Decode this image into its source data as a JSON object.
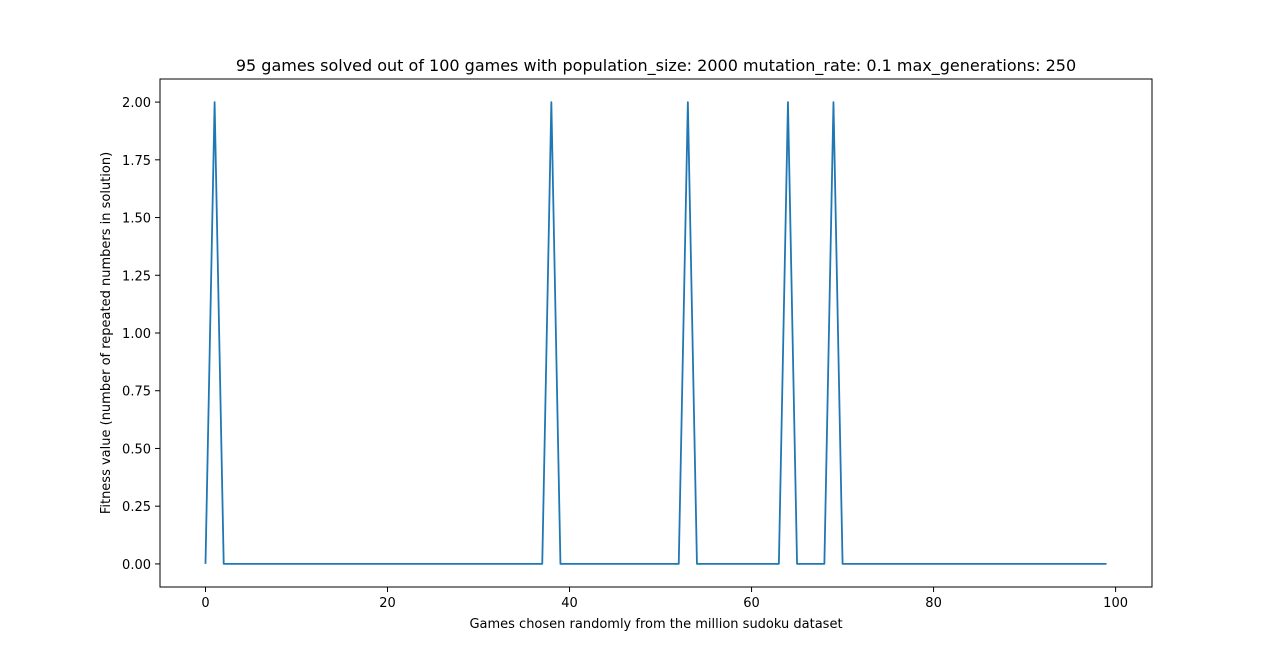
{
  "chart_data": {
    "type": "line",
    "title": "95 games solved out of 100 games with population_size: 2000 mutation_rate: 0.1 max_generations: 250",
    "xlabel": "Games chosen randomly from the million sudoku dataset",
    "ylabel": "Fitness value (number of repeated numbers in solution)",
    "xlim": [
      -5,
      104
    ],
    "ylim": [
      -0.1,
      2.1
    ],
    "xticks": [
      0,
      20,
      40,
      60,
      80,
      100
    ],
    "yticks": [
      0.0,
      0.25,
      0.5,
      0.75,
      1.0,
      1.25,
      1.5,
      1.75,
      2.0
    ],
    "xtick_labels": [
      "0",
      "20",
      "40",
      "60",
      "80",
      "100"
    ],
    "ytick_labels": [
      "0.00",
      "0.25",
      "0.50",
      "0.75",
      "1.00",
      "1.25",
      "1.50",
      "1.75",
      "2.00"
    ],
    "grid": false,
    "series": [
      {
        "color": "#1f77b4",
        "x": [
          0,
          1,
          2,
          3,
          4,
          5,
          6,
          7,
          8,
          9,
          10,
          11,
          12,
          13,
          14,
          15,
          16,
          17,
          18,
          19,
          20,
          21,
          22,
          23,
          24,
          25,
          26,
          27,
          28,
          29,
          30,
          31,
          32,
          33,
          34,
          35,
          36,
          37,
          38,
          39,
          40,
          41,
          42,
          43,
          44,
          45,
          46,
          47,
          48,
          49,
          50,
          51,
          52,
          53,
          54,
          55,
          56,
          57,
          58,
          59,
          60,
          61,
          62,
          63,
          64,
          65,
          66,
          67,
          68,
          69,
          70,
          71,
          72,
          73,
          74,
          75,
          76,
          77,
          78,
          79,
          80,
          81,
          82,
          83,
          84,
          85,
          86,
          87,
          88,
          89,
          90,
          91,
          92,
          93,
          94,
          95,
          96,
          97,
          98,
          99
        ],
        "y": [
          0,
          2,
          0,
          0,
          0,
          0,
          0,
          0,
          0,
          0,
          0,
          0,
          0,
          0,
          0,
          0,
          0,
          0,
          0,
          0,
          0,
          0,
          0,
          0,
          0,
          0,
          0,
          0,
          0,
          0,
          0,
          0,
          0,
          0,
          0,
          0,
          0,
          0,
          2,
          0,
          0,
          0,
          0,
          0,
          0,
          0,
          0,
          0,
          0,
          0,
          0,
          0,
          0,
          2,
          0,
          0,
          0,
          0,
          0,
          0,
          0,
          0,
          0,
          0,
          2,
          0,
          0,
          0,
          0,
          2,
          0,
          0,
          0,
          0,
          0,
          0,
          0,
          0,
          0,
          0,
          0,
          0,
          0,
          0,
          0,
          0,
          0,
          0,
          0,
          0,
          0,
          0,
          0,
          0,
          0,
          0,
          0,
          0,
          0,
          0
        ]
      }
    ]
  }
}
